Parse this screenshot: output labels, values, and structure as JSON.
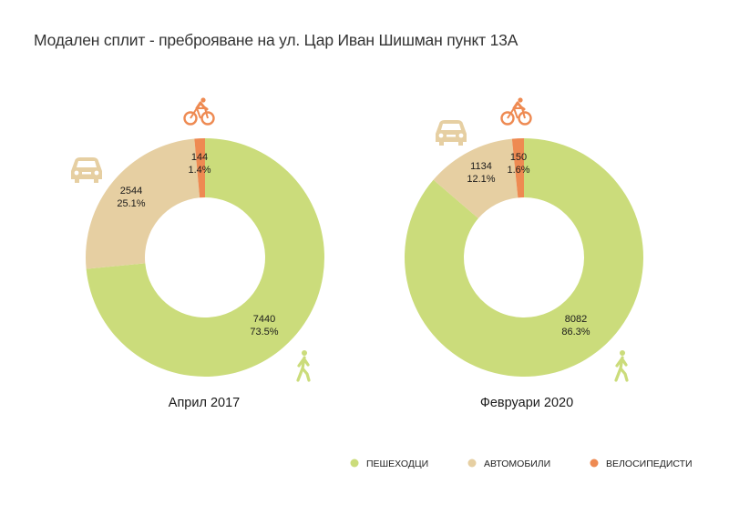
{
  "title": "Модален сплит - преброяване на ул. Цар Иван Шишман пункт 13А",
  "chart_data": {
    "type": "pie",
    "variant": "donut",
    "title": "Модален сплит - преброяване на ул. Цар Иван Шишман пункт 13А",
    "legend": {
      "position": "bottom-right",
      "entries": [
        {
          "key": "pedestrians",
          "label": "ПЕШЕХОДЦИ",
          "color": "#cbdc7b"
        },
        {
          "key": "cars",
          "label": "АВТОМОБИЛИ",
          "color": "#e6cfa2"
        },
        {
          "key": "cyclists",
          "label": "ВЕЛОСИПЕДИСТИ",
          "color": "#ee8a52"
        }
      ]
    },
    "charts": [
      {
        "title": "Април 2017",
        "slices": [
          {
            "key": "pedestrians",
            "value": 7440,
            "percent": "73.5%"
          },
          {
            "key": "cars",
            "value": 2544,
            "percent": "25.1%"
          },
          {
            "key": "cyclists",
            "value": 144,
            "percent": "1.4%"
          }
        ]
      },
      {
        "title": "Февруари 2020",
        "slices": [
          {
            "key": "pedestrians",
            "value": 8082,
            "percent": "86.3%"
          },
          {
            "key": "cars",
            "value": 1134,
            "percent": "12.1%"
          },
          {
            "key": "cyclists",
            "value": 150,
            "percent": "1.6%"
          }
        ]
      }
    ]
  },
  "icons": {
    "pedestrians": "pedestrian-icon",
    "cars": "car-icon",
    "cyclists": "bicycle-icon"
  }
}
